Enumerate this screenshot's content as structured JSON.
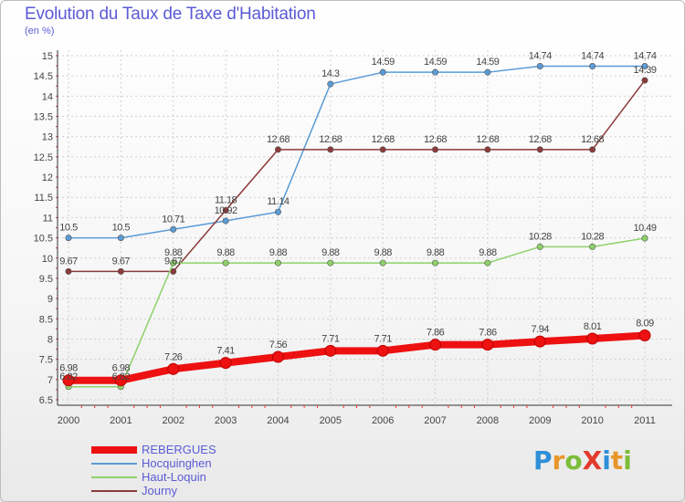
{
  "title": "Evolution du Taux de Taxe d'Habitation",
  "subtitle": "(en %)",
  "logo": {
    "text": "ProXiti",
    "letters": [
      {
        "char": "P",
        "color": "#2f8fd8"
      },
      {
        "char": "r",
        "color": "#e8962a"
      },
      {
        "char": "o",
        "color": "#7cbd3a"
      },
      {
        "char": "X",
        "color": "#e23b2e"
      },
      {
        "char": "i",
        "color": "#2f8fd8"
      },
      {
        "char": "t",
        "color": "#e8962a"
      },
      {
        "char": "i",
        "color": "#7cbd3a"
      }
    ]
  },
  "chart_data": {
    "type": "line",
    "title": "Evolution du Taux de Taxe d'Habitation",
    "subtitle": "(en %)",
    "x": [
      "2000",
      "2001",
      "2002",
      "2003",
      "2004",
      "2005",
      "2006",
      "2007",
      "2008",
      "2009",
      "2010",
      "2011"
    ],
    "ylim": [
      6.5,
      15
    ],
    "yticks": [
      "6.5",
      "7",
      "7.5",
      "8",
      "8.5",
      "9",
      "9.5",
      "10",
      "10.5",
      "11",
      "11.5",
      "12",
      "12.5",
      "13",
      "13.5",
      "14",
      "14.5",
      "15"
    ],
    "grid": true,
    "legend_position": "bottom-left",
    "series": [
      {
        "name": "Hocquinghen",
        "color": "#5a9bd5",
        "values": [
          10.5,
          10.5,
          10.71,
          10.92,
          11.14,
          14.3,
          14.59,
          14.59,
          14.59,
          14.74,
          14.74,
          14.74
        ],
        "labels": [
          "10.5",
          "10.5",
          "10.71",
          "10.92",
          "11.14",
          "14.3",
          "14.59",
          "14.59",
          "14.59",
          "14.74",
          "14.74",
          "14.74"
        ]
      },
      {
        "name": "Journy",
        "color": "#8c3a3a",
        "values": [
          9.67,
          9.67,
          9.67,
          11.18,
          12.68,
          12.68,
          12.68,
          12.68,
          12.68,
          12.68,
          12.68,
          14.39
        ],
        "labels": [
          "9.67",
          "9.67",
          "9.67",
          "11.18",
          "12.68",
          "12.68",
          "12.68",
          "12.68",
          "12.68",
          "12.68",
          "12.68",
          "14.39"
        ]
      },
      {
        "name": "Haut-Loquin",
        "color": "#8fd16a",
        "values": [
          6.82,
          6.82,
          9.88,
          9.88,
          9.88,
          9.88,
          9.88,
          9.88,
          9.88,
          10.28,
          10.28,
          10.49
        ],
        "labels": [
          "6.82",
          "6.82",
          "9.88",
          "9.88",
          "9.88",
          "9.88",
          "9.88",
          "9.88",
          "9.88",
          "10.28",
          "10.28",
          "10.49"
        ]
      },
      {
        "name": "REBERGUES",
        "color": "#ee1111",
        "values": [
          6.98,
          6.98,
          7.26,
          7.41,
          7.56,
          7.71,
          7.71,
          7.86,
          7.86,
          7.94,
          8.01,
          8.09
        ],
        "labels": [
          "6.98",
          "6.98",
          "7.26",
          "7.41",
          "7.56",
          "7.71",
          "7.71",
          "7.86",
          "7.86",
          "7.94",
          "8.01",
          "8.09"
        ]
      }
    ],
    "legend": [
      "REBERGUES",
      "Hocquinghen",
      "Haut-Loquin",
      "Journy"
    ]
  }
}
